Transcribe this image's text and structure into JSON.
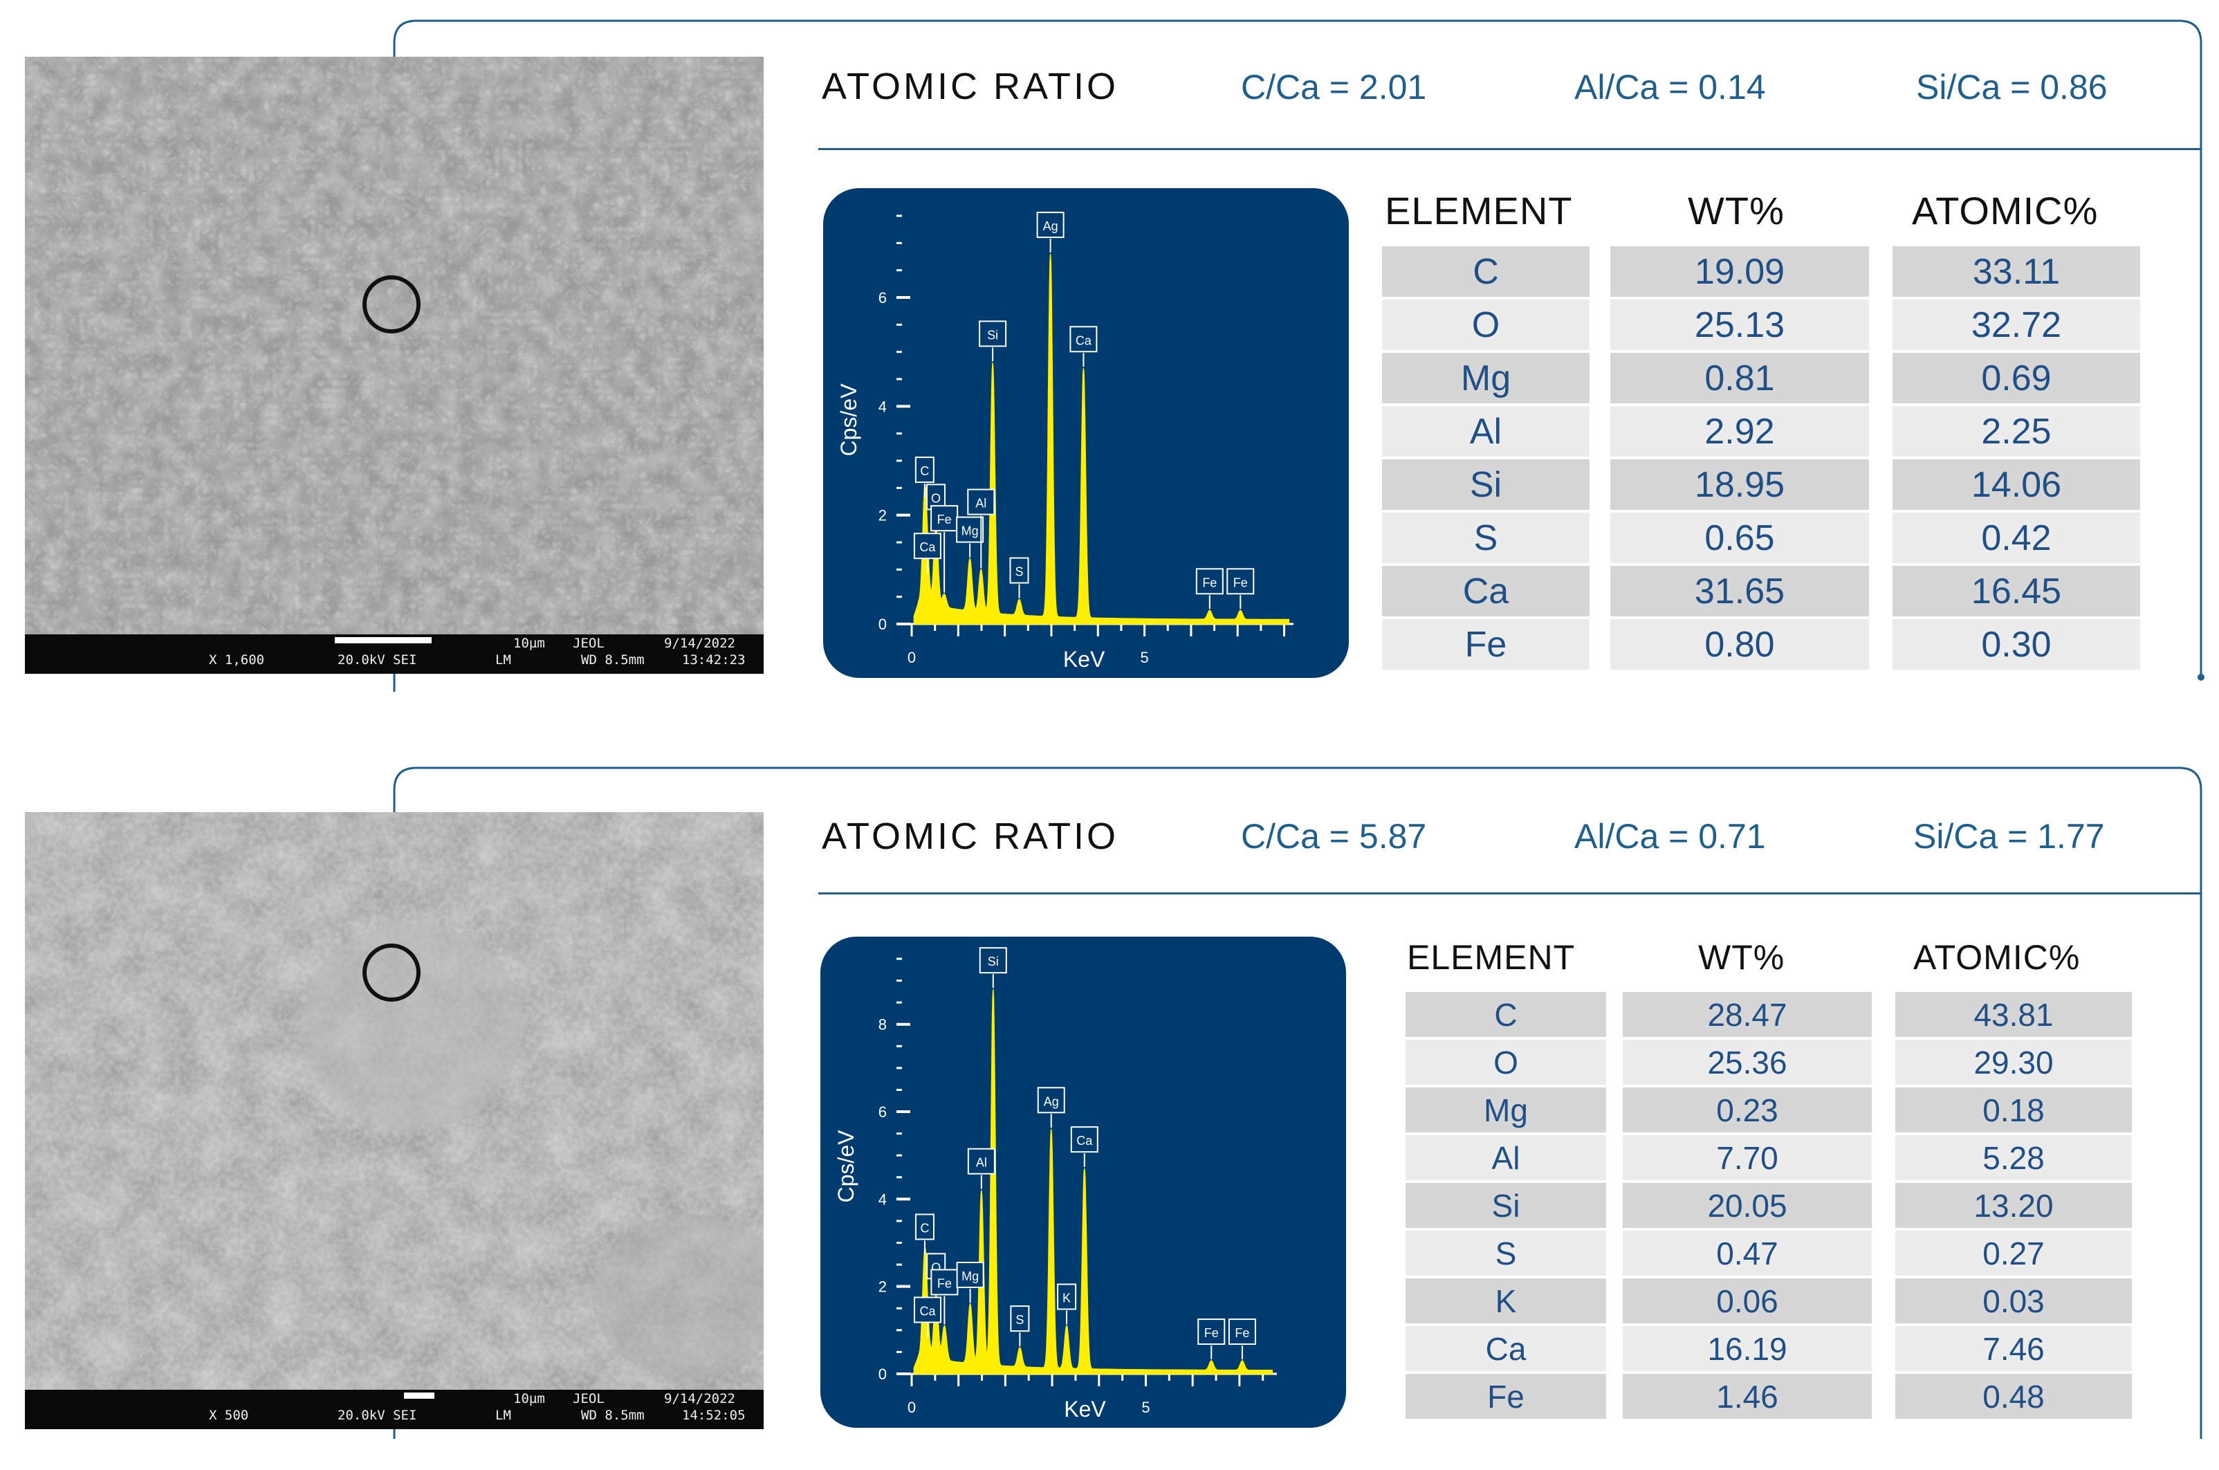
{
  "colors": {
    "accent": "#1f5f8d",
    "spectrum_bg": "#003b6f",
    "spectrum_peaks": "#ffee00",
    "row_dark": "#d6d6d6",
    "row_light": "#ececec"
  },
  "panels": [
    {
      "sem": {
        "mag": "X 1,600",
        "kv": "20.0kV SEI",
        "scale": "10µm",
        "vendor": "JEOL",
        "mode": "LM",
        "wd": "WD 8.5mm",
        "date": "9/14/2022",
        "time": "13:42:23"
      },
      "ratio_title": "ATOMIC RATIO",
      "ratios": [
        "C/Ca = 2.01",
        "Al/Ca = 0.14",
        "Si/Ca = 0.86"
      ],
      "table": {
        "headers": [
          "ELEMENT",
          "WT%",
          "ATOMIC%"
        ],
        "rows": [
          [
            "C",
            "19.09",
            "33.11"
          ],
          [
            "O",
            "25.13",
            "32.72"
          ],
          [
            "Mg",
            "0.81",
            "0.69"
          ],
          [
            "Al",
            "2.92",
            "2.25"
          ],
          [
            "Si",
            "18.95",
            "14.06"
          ],
          [
            "S",
            "0.65",
            "0.42"
          ],
          [
            "Ca",
            "31.65",
            "16.45"
          ],
          [
            "Fe",
            "0.80",
            "0.30"
          ]
        ]
      }
    },
    {
      "sem": {
        "mag": "X 500",
        "kv": "20.0kV SEI",
        "scale": "10µm",
        "vendor": "JEOL",
        "mode": "LM",
        "wd": "WD 8.5mm",
        "date": "9/14/2022",
        "time": "14:52:05"
      },
      "ratio_title": "ATOMIC RATIO",
      "ratios": [
        "C/Ca = 5.87",
        "Al/Ca = 0.71",
        "Si/Ca = 1.77"
      ],
      "table": {
        "headers": [
          "ELEMENT",
          "WT%",
          "ATOMIC%"
        ],
        "rows": [
          [
            "C",
            "28.47",
            "43.81"
          ],
          [
            "O",
            "25.36",
            "29.30"
          ],
          [
            "Mg",
            "0.23",
            "0.18"
          ],
          [
            "Al",
            "7.70",
            "5.28"
          ],
          [
            "Si",
            "20.05",
            "13.20"
          ],
          [
            "S",
            "0.47",
            "0.27"
          ],
          [
            "K",
            "0.06",
            "0.03"
          ],
          [
            "Ca",
            "16.19",
            "7.46"
          ],
          [
            "Fe",
            "1.46",
            "0.48"
          ]
        ]
      }
    }
  ],
  "chart_data": [
    {
      "type": "line",
      "xlabel": "KeV",
      "ylabel": "Cps/eV",
      "xlim": [
        0,
        8.2
      ],
      "ylim": [
        0,
        7.5
      ],
      "xticks": [
        0,
        5
      ],
      "yticks": [
        0,
        2,
        4,
        6
      ],
      "peaks": [
        {
          "label": "C",
          "x": 0.28,
          "y": 2.3
        },
        {
          "label": "O",
          "x": 0.52,
          "y": 1.8
        },
        {
          "label": "Ca",
          "x": 0.34,
          "y": 0.9
        },
        {
          "label": "Fe",
          "x": 0.7,
          "y": 0.55
        },
        {
          "label": "Mg",
          "x": 1.25,
          "y": 1.2
        },
        {
          "label": "Al",
          "x": 1.49,
          "y": 1.0
        },
        {
          "label": "Si",
          "x": 1.74,
          "y": 4.8
        },
        {
          "label": "S",
          "x": 2.31,
          "y": 0.45
        },
        {
          "label": "Ag",
          "x": 2.98,
          "y": 6.8
        },
        {
          "label": "Ca",
          "x": 3.69,
          "y": 4.7
        },
        {
          "label": "Fe",
          "x": 6.4,
          "y": 0.25
        },
        {
          "label": "Fe",
          "x": 7.06,
          "y": 0.25
        }
      ]
    },
    {
      "type": "line",
      "xlabel": "KeV",
      "ylabel": "Cps/eV",
      "xlim": [
        0,
        7.8
      ],
      "ylim": [
        0,
        9.5
      ],
      "xticks": [
        0,
        5
      ],
      "yticks": [
        0,
        2,
        4,
        6,
        8
      ],
      "peaks": [
        {
          "label": "C",
          "x": 0.28,
          "y": 2.7
        },
        {
          "label": "O",
          "x": 0.52,
          "y": 1.8
        },
        {
          "label": "Ca",
          "x": 0.34,
          "y": 0.8
        },
        {
          "label": "Fe",
          "x": 0.7,
          "y": 1.1
        },
        {
          "label": "Mg",
          "x": 1.25,
          "y": 1.6
        },
        {
          "label": "Al",
          "x": 1.49,
          "y": 4.2
        },
        {
          "label": "Si",
          "x": 1.74,
          "y": 8.8
        },
        {
          "label": "S",
          "x": 2.31,
          "y": 0.6
        },
        {
          "label": "K",
          "x": 3.31,
          "y": 1.1
        },
        {
          "label": "Ag",
          "x": 2.98,
          "y": 5.6
        },
        {
          "label": "Ca",
          "x": 3.69,
          "y": 4.7
        },
        {
          "label": "Fe",
          "x": 6.4,
          "y": 0.3
        },
        {
          "label": "Fe",
          "x": 7.06,
          "y": 0.3
        }
      ]
    }
  ]
}
